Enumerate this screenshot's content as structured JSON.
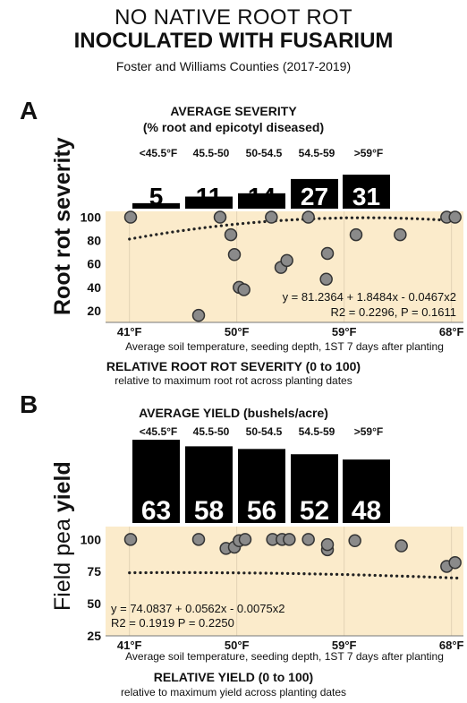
{
  "header": {
    "line1": "NO NATIVE ROOT ROT",
    "line2": "INOCULATED WITH FUSARIUM",
    "line3": "Foster and Williams Counties (2017-2019)"
  },
  "chart_data": [
    {
      "panel": "A",
      "type": "bar",
      "title": "AVERAGE SEVERITY",
      "subtitle": "(% root and epicotyl diseased)",
      "categories": [
        "<45.5°F",
        "45.5-50",
        "50-54.5",
        "54.5-59",
        ">59°F"
      ],
      "values": [
        5,
        11,
        14,
        27,
        31
      ],
      "ylabel_part1": "Root rot severity",
      "ylabel_part2": ""
    },
    {
      "panel": "A",
      "type": "scatter",
      "ylabel": "Root rot severity",
      "xlabel": "Average soil temperature, seeding depth, 1ST 7 days after planting",
      "ylim": [
        10,
        105
      ],
      "xlim": [
        39,
        69
      ],
      "yticks": [
        100,
        80,
        60,
        40,
        20
      ],
      "xticks": [
        "41°F",
        "50°F",
        "59°F",
        "68°F"
      ],
      "xtick_values": [
        41,
        50,
        59,
        68
      ],
      "points": [
        {
          "x": 41.1,
          "y": 100
        },
        {
          "x": 46.8,
          "y": 16
        },
        {
          "x": 48.6,
          "y": 100
        },
        {
          "x": 49.5,
          "y": 85
        },
        {
          "x": 49.8,
          "y": 68
        },
        {
          "x": 50.2,
          "y": 40
        },
        {
          "x": 50.6,
          "y": 38
        },
        {
          "x": 52.9,
          "y": 100
        },
        {
          "x": 53.7,
          "y": 57
        },
        {
          "x": 54.2,
          "y": 63
        },
        {
          "x": 56.0,
          "y": 100
        },
        {
          "x": 57.5,
          "y": 47
        },
        {
          "x": 57.6,
          "y": 69
        },
        {
          "x": 60.0,
          "y": 85
        },
        {
          "x": 63.7,
          "y": 85
        },
        {
          "x": 67.6,
          "y": 100
        },
        {
          "x": 68.3,
          "y": 100
        }
      ],
      "fit": {
        "a": 81.2364,
        "b": 1.8484,
        "c": -0.0467,
        "x0": 41
      },
      "equation": "y = 81.2364 + 1.8484x - 0.0467x2",
      "stats": "R2 = 0.2296, P = 0.1611",
      "caption_title": "RELATIVE ROOT ROT SEVERITY (0 to 100)",
      "caption_sub": "relative to maximum root rot across planting dates"
    },
    {
      "panel": "B",
      "type": "bar",
      "title": "AVERAGE YIELD (bushels/acre)",
      "categories": [
        "<45.5°F",
        "45.5-50",
        "50-54.5",
        "54.5-59",
        ">59°F"
      ],
      "values": [
        63,
        58,
        56,
        52,
        48
      ],
      "ylabel_part1": "Field pea ",
      "ylabel_part2": "yield"
    },
    {
      "panel": "B",
      "type": "scatter",
      "ylabel": "Field pea yield",
      "xlabel": "Average soil temperature, seeding depth, 1ST 7 days after planting",
      "ylim": [
        25,
        110
      ],
      "xlim": [
        39,
        69
      ],
      "yticks": [
        100,
        75,
        50,
        25
      ],
      "xticks": [
        "41°F",
        "50°F",
        "59°F",
        "68°F"
      ],
      "xtick_values": [
        41,
        50,
        59,
        68
      ],
      "points": [
        {
          "x": 41.1,
          "y": 100
        },
        {
          "x": 46.8,
          "y": 100
        },
        {
          "x": 49.1,
          "y": 93
        },
        {
          "x": 49.8,
          "y": 94
        },
        {
          "x": 50.2,
          "y": 99
        },
        {
          "x": 50.7,
          "y": 100
        },
        {
          "x": 53.0,
          "y": 100
        },
        {
          "x": 53.8,
          "y": 100
        },
        {
          "x": 54.4,
          "y": 100
        },
        {
          "x": 56.0,
          "y": 100
        },
        {
          "x": 57.6,
          "y": 92
        },
        {
          "x": 57.6,
          "y": 96
        },
        {
          "x": 59.9,
          "y": 99
        },
        {
          "x": 63.8,
          "y": 95
        },
        {
          "x": 67.6,
          "y": 79
        },
        {
          "x": 68.3,
          "y": 82
        }
      ],
      "fit": {
        "a": 74.0837,
        "b": 0.0562,
        "c": -0.0075,
        "x0": 41
      },
      "equation": "y = 74.0837 + 0.0562x - 0.0075x2",
      "stats": "R2 = 0.1919  P = 0.2250",
      "caption_title": "RELATIVE YIELD (0 to 100)",
      "caption_sub": "relative to maximum yield across planting dates"
    }
  ]
}
